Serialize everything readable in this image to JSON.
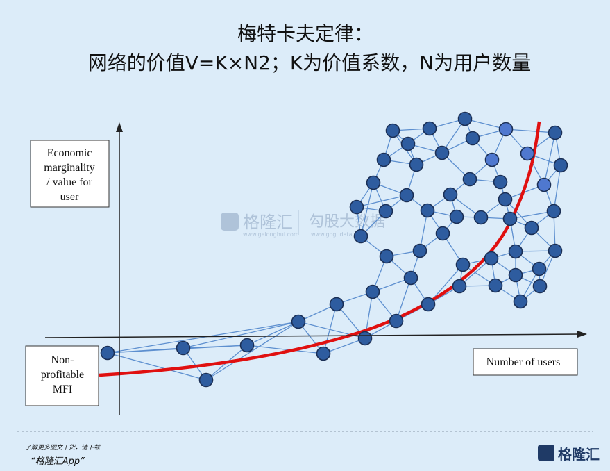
{
  "title": [
    "梅特卡夫定律：",
    "网络的价值V=K×N2；K为价值系数，N为用户数量"
  ],
  "y_label": [
    "Economic",
    "marginality",
    "/ value for",
    "user"
  ],
  "origin_label": [
    "Non-",
    "profitable",
    "MFI"
  ],
  "x_label": "Number of users",
  "watermark": [
    "格隆汇",
    "www.gelonghui.com",
    "勾股大数据",
    "www.gogudata.com"
  ],
  "footer": {
    "note": "了解更多图文干货，请下载",
    "app": "“格隆汇App”",
    "brand": "格隆汇"
  }
}
